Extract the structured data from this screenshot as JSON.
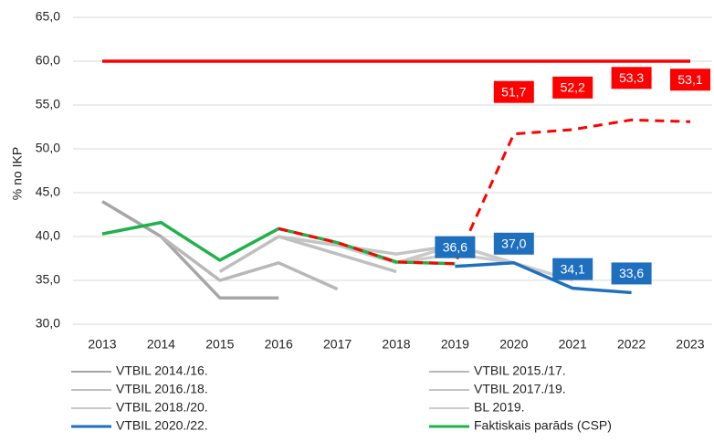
{
  "chart_data": {
    "type": "line",
    "y_label": "% no IKP",
    "categories": [
      "2013",
      "2014",
      "2015",
      "2016",
      "2017",
      "2018",
      "2019",
      "2020",
      "2021",
      "2022",
      "2023"
    ],
    "ylim": [
      30,
      65
    ],
    "yticks": [
      {
        "value": 30,
        "label": "30,0"
      },
      {
        "value": 35,
        "label": "35,0"
      },
      {
        "value": 40,
        "label": "40,0"
      },
      {
        "value": 45,
        "label": "45,0"
      },
      {
        "value": 50,
        "label": "50,0"
      },
      {
        "value": 55,
        "label": "55,0"
      },
      {
        "value": 60,
        "label": "60,0"
      },
      {
        "value": 65,
        "label": "65,0"
      }
    ],
    "grid": true,
    "series": [
      {
        "name": "VTBIL 2014./16.",
        "color": "#a6a6a6",
        "values": [
          44,
          40,
          33,
          33,
          null,
          null,
          null,
          null,
          null,
          null,
          null
        ]
      },
      {
        "name": "VTBIL 2015./17.",
        "color": "#b8b8b8",
        "values": [
          null,
          40,
          35,
          37,
          34,
          null,
          null,
          null,
          null,
          null,
          null
        ]
      },
      {
        "name": "VTBIL 2016./18.",
        "color": "#bfbfbf",
        "values": [
          null,
          null,
          36,
          40,
          38,
          36,
          null,
          null,
          null,
          null,
          null
        ]
      },
      {
        "name": "VTBIL 2017./19.",
        "color": "#c4c4c4",
        "values": [
          null,
          null,
          null,
          40,
          39,
          38,
          39,
          null,
          null,
          null,
          null
        ]
      },
      {
        "name": "VTBIL 2018./20.",
        "color": "#c9c9c9",
        "values": [
          null,
          null,
          null,
          null,
          39,
          37,
          39,
          37,
          null,
          null,
          null
        ]
      },
      {
        "name": "BL 2019.",
        "color": "#cccccc",
        "values": [
          null,
          null,
          null,
          null,
          null,
          37,
          38,
          37,
          35,
          null,
          null
        ]
      },
      {
        "name": "Faktiskais parāds (CSP)",
        "color": "#1fb24a",
        "values": [
          40.3,
          41.6,
          37.3,
          40.9,
          39.3,
          37.1,
          36.9,
          null,
          null,
          null,
          null
        ]
      },
      {
        "color": "#ff0000",
        "dashed": true,
        "values": [
          null,
          null,
          null,
          40.9,
          39.3,
          37.1,
          36.9,
          51.7,
          52.2,
          53.3,
          53.1
        ],
        "value_labels": [
          null,
          null,
          null,
          null,
          null,
          null,
          null,
          "51,7",
          "52,2",
          "53,3",
          "53,1"
        ]
      },
      {
        "name": "VTBIL 2020./22.",
        "color": "#1f6fbf",
        "values": [
          null,
          null,
          null,
          null,
          null,
          null,
          36.6,
          37.0,
          34.1,
          33.6,
          null
        ],
        "value_labels": [
          null,
          null,
          null,
          null,
          null,
          null,
          "36,6",
          "37,0",
          "34,1",
          "33,6",
          null
        ]
      },
      {
        "color": "#ff0000",
        "values": [
          60,
          60,
          60,
          60,
          60,
          60,
          60,
          60,
          60,
          60,
          60
        ]
      }
    ],
    "legend_order": [
      0,
      1,
      2,
      3,
      4,
      5,
      8,
      6
    ]
  }
}
